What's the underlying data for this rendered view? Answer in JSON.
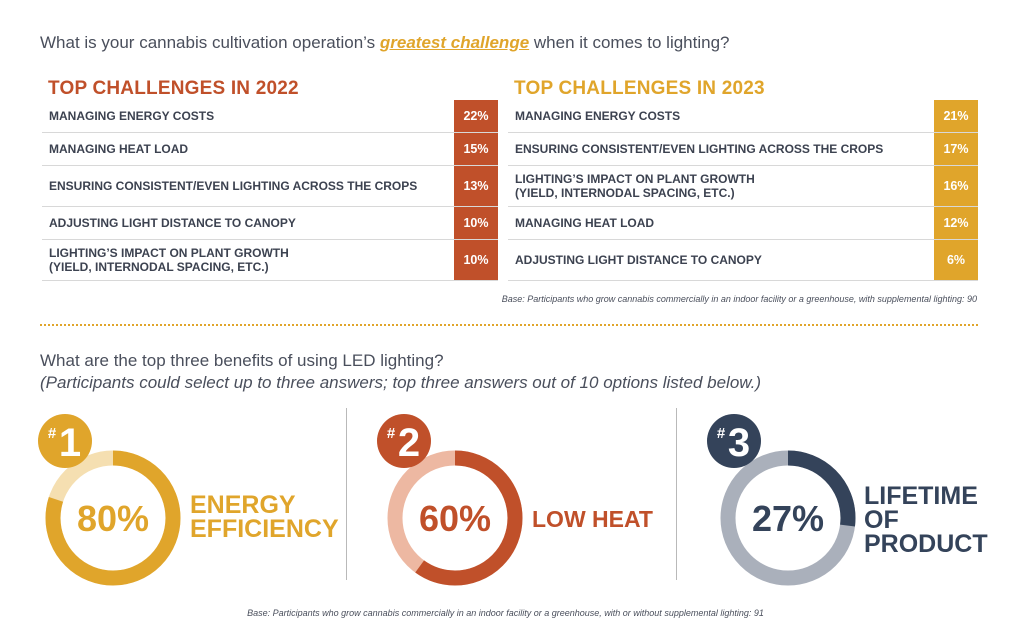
{
  "question1": {
    "before": "What is your cannabis cultivation operation’s ",
    "highlight": "greatest challenge",
    "after": " when it comes to lighting?"
  },
  "colors": {
    "orange": "#c0502a",
    "gold": "#e0a52b",
    "navy": "#34435a"
  },
  "chart_data": [
    {
      "type": "table",
      "title": "TOP CHALLENGES IN 2022",
      "rows": [
        {
          "label": "MANAGING ENERGY COSTS",
          "value": "22%"
        },
        {
          "label": "MANAGING HEAT LOAD",
          "value": "15%"
        },
        {
          "label": "ENSURING CONSISTENT/EVEN LIGHTING ACROSS THE CROPS",
          "value": "13%"
        },
        {
          "label": "ADJUSTING LIGHT DISTANCE TO CANOPY",
          "value": "10%"
        },
        {
          "label": "LIGHTING’S IMPACT ON PLANT GROWTH",
          "label2": "(YIELD, INTERNODAL SPACING, ETC.)",
          "value": "10%"
        }
      ]
    },
    {
      "type": "table",
      "title": "TOP CHALLENGES IN 2023",
      "rows": [
        {
          "label": "MANAGING ENERGY COSTS",
          "value": "21%"
        },
        {
          "label": "ENSURING CONSISTENT/EVEN LIGHTING ACROSS THE CROPS",
          "value": "17%"
        },
        {
          "label": "LIGHTING’S IMPACT ON PLANT GROWTH",
          "label2": "(YIELD, INTERNODAL SPACING, ETC.)",
          "value": "16%"
        },
        {
          "label": "MANAGING HEAT LOAD",
          "value": "12%"
        },
        {
          "label": "ADJUSTING LIGHT DISTANCE TO CANOPY",
          "value": "6%"
        }
      ]
    },
    {
      "type": "pie",
      "items": [
        {
          "rank": "1",
          "value": 80,
          "value_label": "80%",
          "name_lines": [
            "ENERGY",
            "EFFICIENCY"
          ],
          "color": "#e0a52b",
          "track": "#f5dfb1"
        },
        {
          "rank": "2",
          "value": 60,
          "value_label": "60%",
          "name_lines": [
            "LOW HEAT"
          ],
          "color": "#c0502a",
          "track": "#edb8a2"
        },
        {
          "rank": "3",
          "value": 27,
          "value_label": "27%",
          "name_lines": [
            "LIFETIME",
            "OF",
            "PRODUCT"
          ],
          "color": "#34435a",
          "track": "#aab0bb"
        }
      ]
    }
  ],
  "base_note_1": "Base: Participants who grow cannabis commercially in an indoor facility or a greenhouse, with supplemental lighting: 90",
  "question2": "What are the top three benefits of using LED lighting?",
  "question2_sub": "(Participants could select up to three answers; top three answers out of 10 options listed below.)",
  "base_note_2": "Base: Participants who grow cannabis commercially in an indoor facility or a greenhouse, with or without supplemental lighting: 91"
}
